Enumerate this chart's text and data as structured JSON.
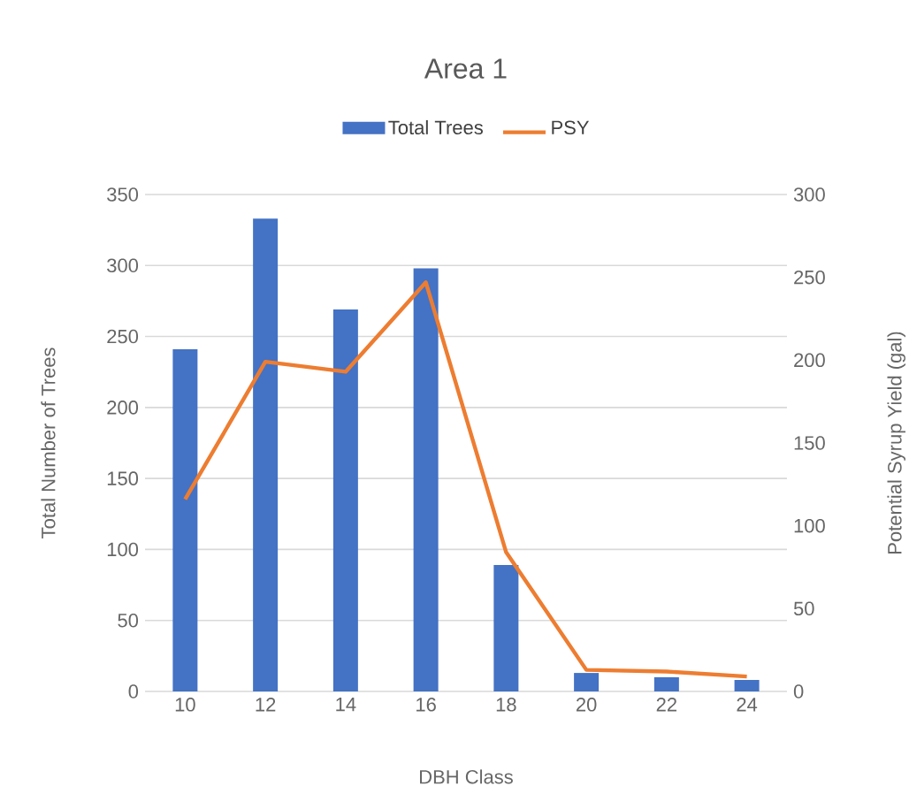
{
  "chart_data": {
    "type": "bar",
    "title": "Area 1",
    "xlabel": "DBH Class",
    "ylabel": "Total Number of Trees",
    "y2label": "Potential Syrup Yield (gal)",
    "categories": [
      "10",
      "12",
      "14",
      "16",
      "18",
      "20",
      "22",
      "24"
    ],
    "series": [
      {
        "name": "Total Trees",
        "color": "#4472c4",
        "values": [
          241,
          333,
          269,
          298,
          89,
          13,
          10,
          8
        ]
      },
      {
        "name": "PSY",
        "type": "line",
        "axis": "y2",
        "color": "#ed7d31",
        "values": [
          116,
          199,
          193,
          247,
          84,
          13,
          12,
          9
        ]
      }
    ],
    "ylim": [
      0,
      350
    ],
    "yticks": [
      0,
      50,
      100,
      150,
      200,
      250,
      300,
      350
    ],
    "y2lim": [
      0,
      300
    ],
    "y2ticks": [
      0,
      50,
      100,
      150,
      200,
      250,
      300
    ],
    "grid": "y",
    "legend": "top"
  }
}
